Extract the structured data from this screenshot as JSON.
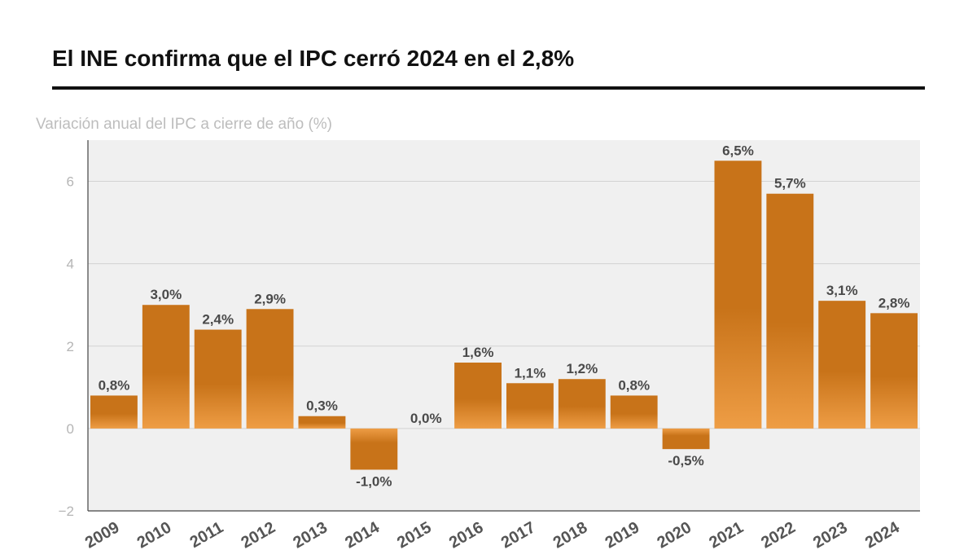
{
  "title": "El INE confirma que el IPC cerró 2024 en el 2,8%",
  "subtitle": "Variación anual del IPC a cierre de año (%)",
  "colors": {
    "bar": "#c87319",
    "bar_light": "#ee9d45",
    "plot_background": "#f0f0f0",
    "grid": "#d2d2d2",
    "axis": "#444444"
  },
  "chart_data": {
    "type": "bar",
    "title": "El INE confirma que el IPC cerró 2024 en el 2,8%",
    "ylabel": "Variación anual del IPC a cierre de año (%)",
    "xlabel": "",
    "ylim": [
      -2,
      7
    ],
    "yticks": [
      -2,
      0,
      2,
      4,
      6
    ],
    "ytick_labels": [
      "−2",
      "0",
      "2",
      "4",
      "6"
    ],
    "grid": true,
    "categories": [
      "2009",
      "2010",
      "2011",
      "2012",
      "2013",
      "2014",
      "2015",
      "2016",
      "2017",
      "2018",
      "2019",
      "2020",
      "2021",
      "2022",
      "2023",
      "2024"
    ],
    "values": [
      0.8,
      3.0,
      2.4,
      2.9,
      0.3,
      -1.0,
      0.0,
      1.6,
      1.1,
      1.2,
      0.8,
      -0.5,
      6.5,
      5.7,
      3.1,
      2.8
    ],
    "data_labels": [
      "0,8%",
      "3,0%",
      "2,4%",
      "2,9%",
      "0,3%",
      "-1,0%",
      "0,0%",
      "1,6%",
      "1,1%",
      "1,2%",
      "0,8%",
      "-0,5%",
      "6,5%",
      "5,7%",
      "3,1%",
      "2,8%"
    ]
  }
}
